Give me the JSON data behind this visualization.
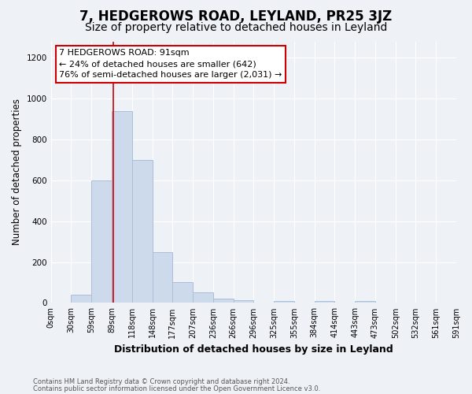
{
  "title1": "7, HEDGEROWS ROAD, LEYLAND, PR25 3JZ",
  "title2": "Size of property relative to detached houses in Leyland",
  "xlabel": "Distribution of detached houses by size in Leyland",
  "ylabel": "Number of detached properties",
  "bin_starts": [
    0,
    29.5,
    59,
    88.5,
    118,
    147.5,
    177,
    206.5,
    236,
    265.5,
    295,
    324.5,
    354,
    383.5,
    413,
    442.5,
    472,
    501.5,
    531,
    560.5
  ],
  "bin_width": 29.5,
  "tick_labels": [
    "0sqm",
    "30sqm",
    "59sqm",
    "89sqm",
    "118sqm",
    "148sqm",
    "177sqm",
    "207sqm",
    "236sqm",
    "266sqm",
    "296sqm",
    "325sqm",
    "355sqm",
    "384sqm",
    "414sqm",
    "443sqm",
    "473sqm",
    "502sqm",
    "532sqm",
    "561sqm",
    "591sqm"
  ],
  "bar_heights": [
    0,
    40,
    600,
    940,
    700,
    250,
    100,
    50,
    20,
    15,
    0,
    10,
    0,
    10,
    0,
    10,
    0,
    0,
    0,
    0
  ],
  "bar_color": "#ccdaeb",
  "bar_edge_color": "#aabfd8",
  "property_size": 91,
  "vline_color": "#cc0000",
  "annotation_line1": "7 HEDGEROWS ROAD: 91sqm",
  "annotation_line2": "← 24% of detached houses are smaller (642)",
  "annotation_line3": "76% of semi-detached houses are larger (2,031) →",
  "annotation_box_color": "#ffffff",
  "annotation_border_color": "#cc0000",
  "ylim": [
    0,
    1280
  ],
  "yticks": [
    0,
    200,
    400,
    600,
    800,
    1000,
    1200
  ],
  "footnote1": "Contains HM Land Registry data © Crown copyright and database right 2024.",
  "footnote2": "Contains public sector information licensed under the Open Government Licence v3.0.",
  "bg_color": "#eef2f7",
  "grid_color": "#ffffff",
  "title1_fontsize": 12,
  "title2_fontsize": 10,
  "xlabel_fontsize": 9,
  "ylabel_fontsize": 8.5,
  "tick_fontsize": 7,
  "annotation_fontsize": 8
}
